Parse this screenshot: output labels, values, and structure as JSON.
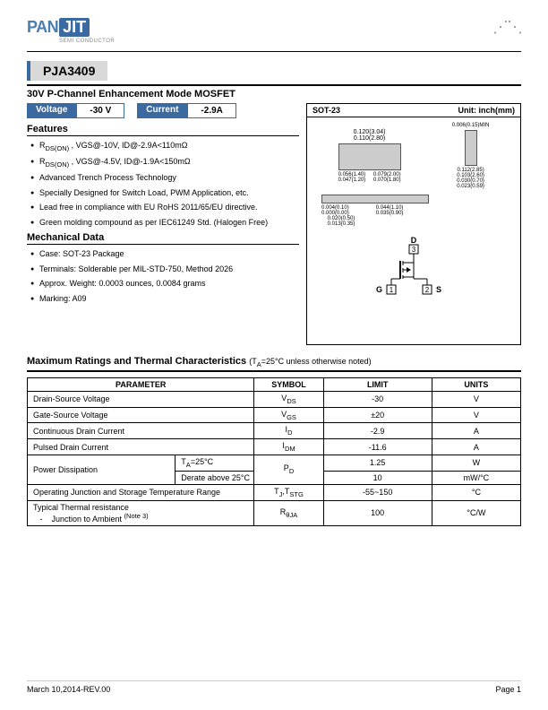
{
  "brand": {
    "pan": "PAN",
    "jit": "JIT",
    "sub": "SEMI CONDUCTOR"
  },
  "part_number": "PJA3409",
  "description": "30V P-Channel Enhancement Mode MOSFET",
  "badges": {
    "voltage_label": "Voltage",
    "voltage_value": "-30 V",
    "current_label": "Current",
    "current_value": "-2.9A"
  },
  "package_diagram": {
    "name": "SOT-23",
    "unit": "Unit: inch(mm)",
    "dims": {
      "top_width": "0.120(3.04)",
      "top_height": "0.110(2.80)",
      "left_w": "0.056(1.40)",
      "left_h": "0.047(1.20)",
      "bottom_w1": "0.079(2.00)",
      "bottom_w2": "0.070(1.80)",
      "side_max": "0.006(0.15)MIN",
      "side_h1": "0.112(2.85)",
      "side_h2": "0.103(2.60)",
      "side_b1": "0.030(0.70)",
      "side_b2": "0.023(0.59)",
      "out_top": "0.004(0.10)",
      "out_bot": "0.000(0.00)",
      "out_r": "0.044(1.10)",
      "out_r2": "0.035(0.90)",
      "lead_w1": "0.020(0.50)",
      "lead_w2": "0.013(0.35)"
    },
    "pins": {
      "d": "D",
      "d_num": "3",
      "g": "G",
      "g_num": "1",
      "s": "S",
      "s_num": "2"
    }
  },
  "sections": {
    "features": "Features",
    "mechanical": "Mechanical Data",
    "ratings_hdr": "Maximum Ratings and Thermal Characteristics",
    "ratings_note": "(T",
    "ratings_note2": "A",
    "ratings_note3": "=25°C unless otherwise noted)"
  },
  "features": [
    "R<sub>DS(ON)</sub> , VGS@-10V,  ID@-2.9A<110mΩ",
    "R<sub>DS(ON)</sub> , VGS@-4.5V, ID@-1.9A<150mΩ",
    "Advanced Trench Process Technology",
    "Specially Designed for Switch Load, PWM Application, etc.",
    "Lead free in compliance with EU RoHS 2011/65/EU directive.",
    "Green molding compound as per IEC61249 Std. (Halogen Free)"
  ],
  "mechanical": [
    "Case: SOT-23 Package",
    "Terminals: Solderable per MIL-STD-750, Method 2026",
    "Approx. Weight: 0.0003 ounces, 0.0084 grams",
    "Marking: A09"
  ],
  "table": {
    "headers": [
      "PARAMETER",
      "SYMBOL",
      "LIMIT",
      "UNITS"
    ],
    "rows": [
      {
        "param": "Drain-Source Voltage",
        "cond": null,
        "sym": "V",
        "sub": "DS",
        "limit": "-30",
        "unit": "V"
      },
      {
        "param": "Gate-Source Voltage",
        "cond": null,
        "sym": "V",
        "sub": "GS",
        "limit": "±20",
        "unit": "V"
      },
      {
        "param": "Continuous Drain Current",
        "cond": null,
        "sym": "I",
        "sub": "D",
        "limit": "-2.9",
        "unit": "A"
      },
      {
        "param": "Pulsed Drain Current",
        "cond": null,
        "sym": "I",
        "sub": "DM",
        "limit": "-11.6",
        "unit": "A"
      },
      {
        "param": "Power Dissipation",
        "cond": "T<sub>A</sub>=25°C",
        "sym": "P",
        "sub": "D",
        "limit": "1.25",
        "unit": "W",
        "rowspan": 2
      },
      {
        "param": null,
        "cond": "Derate above 25°C",
        "sym": null,
        "sub": null,
        "limit": "10",
        "unit": "mW/°C"
      },
      {
        "param": "Operating Junction and Storage Temperature Range",
        "cond": null,
        "sym": "T<sub>J</sub>,T",
        "sub": "STG",
        "limit": "-55~150",
        "unit": "°C"
      },
      {
        "param": "Typical Thermal resistance<br>&nbsp;&nbsp;&nbsp;-&nbsp;&nbsp;&nbsp;&nbsp;Junction to Ambient <sup>(Note 3)</sup>",
        "cond": null,
        "sym": "R",
        "sub": "θJA",
        "limit": "100",
        "unit": "°C/W"
      }
    ]
  },
  "footer": {
    "left": "March 10,2014-REV.00",
    "right": "Page 1"
  },
  "colors": {
    "brand_blue": "#3a6aa0",
    "gray": "#d9d9d9"
  }
}
